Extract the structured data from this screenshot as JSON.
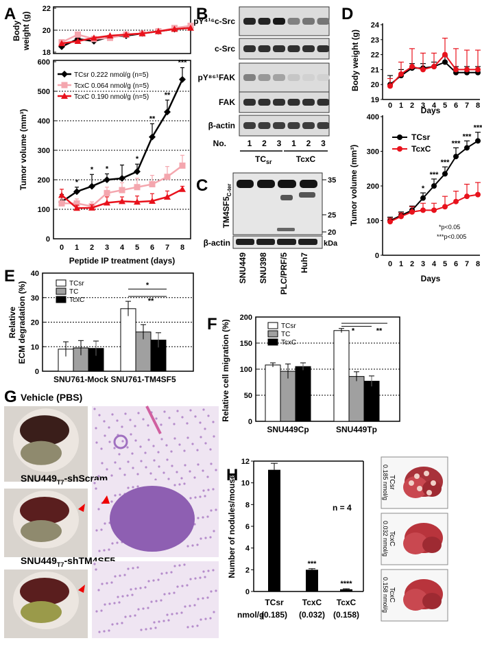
{
  "colors": {
    "black": "#000000",
    "pink": "#f4a6ae",
    "red": "#e8121c",
    "grey": "#a0a0a0",
    "white": "#ffffff"
  },
  "panels": {
    "A": {
      "letter": "A",
      "body_ylabel_1": "Body",
      "body_ylabel_2": "weight (g)",
      "body_chart": {
        "type": "line",
        "ylim": [
          18,
          22
        ],
        "yticks": [
          "18",
          "20",
          "22"
        ],
        "x": [
          0,
          1,
          2,
          3,
          4,
          5,
          6,
          7,
          8
        ],
        "series": [
          {
            "name": "TCsr",
            "values": [
              18.5,
              19.2,
              19.0,
              19.4,
              19.5,
              19.7,
              19.9,
              20.1,
              20.2
            ]
          },
          {
            "name": "TcxC 0.064",
            "values": [
              18.9,
              19.6,
              19.2,
              19.3,
              19.6,
              19.7,
              19.9,
              20.2,
              20.4
            ]
          },
          {
            "name": "TcxC 0.190",
            "values": [
              18.8,
              19.0,
              19.3,
              19.5,
              19.6,
              19.7,
              19.9,
              20.1,
              20.2
            ]
          }
        ]
      },
      "tumor_chart": {
        "type": "line",
        "ylim": [
          0,
          600
        ],
        "yticks": [
          "0",
          "100",
          "200",
          "300",
          "400",
          "500",
          "600"
        ],
        "xticks": [
          "0",
          "1",
          "2",
          "3",
          "4",
          "5",
          "6",
          "7",
          "8"
        ],
        "ylabel": "Tumor volume (mm³)",
        "xlabel": "Peptide IP treatment (days)",
        "series": [
          {
            "name": "TCsr 0.222 nmol/g (n=5)",
            "values": [
              125,
              160,
              178,
              200,
              205,
              228,
              345,
              430,
              540
            ],
            "err": [
              25,
              15,
              40,
              20,
              45,
              25,
              45,
              40,
              40
            ]
          },
          {
            "name": "TcxC 0.064 nmol/g (n=5)",
            "values": [
              120,
              120,
              110,
              155,
              165,
              175,
              185,
              210,
              248
            ],
            "err": [
              15,
              15,
              15,
              20,
              25,
              30,
              30,
              35,
              35
            ]
          },
          {
            "name": "TcxC 0.190 nmol/g (n=5)",
            "values": [
              148,
              104,
              105,
              122,
              127,
              125,
              128,
              142,
              168
            ],
            "err": [
              20,
              10,
              10,
              20,
              15,
              20,
              25,
              20,
              10
            ]
          }
        ],
        "annotations": [
          "*",
          "*",
          "*",
          "*",
          "**",
          "**",
          "***"
        ]
      }
    },
    "B": {
      "letter": "B",
      "blots": [
        "pY⁴¹⁶c-Src",
        "c-Src",
        "pY⁸⁶¹FAK",
        "FAK",
        "β-actin"
      ],
      "no_label": "No.",
      "lanes": [
        "1",
        "2",
        "3",
        "1",
        "2",
        "3"
      ],
      "groups": [
        "TCsr",
        "TcxC"
      ]
    },
    "C": {
      "letter": "C",
      "blot_label": "TM4SF5C-ter",
      "actin_label": "β-actin",
      "markers": [
        "35",
        "25",
        "20"
      ],
      "kda": "kDa",
      "cells": [
        "SNU449",
        "SNU398",
        "PLC/PRF/5",
        "Huh7"
      ]
    },
    "D": {
      "letter": "D",
      "body_chart": {
        "type": "line",
        "ylabel": "Body weight (g)",
        "xlabel": "Days",
        "ylim": [
          19,
          24
        ],
        "yticks": [
          "19",
          "20",
          "21",
          "22",
          "23",
          "24"
        ],
        "xticks": [
          "0",
          "1",
          "2",
          "3",
          "4",
          "5",
          "6",
          "7",
          "8"
        ],
        "series": [
          {
            "name": "TCsr",
            "values": [
              20.0,
              20.6,
              21.1,
              21.1,
              21.2,
              21.5,
              20.8,
              20.8,
              20.8
            ]
          },
          {
            "name": "TcxC",
            "values": [
              19.9,
              20.7,
              21.2,
              21.0,
              21.2,
              22.0,
              21.0,
              21.0,
              21.0
            ]
          }
        ]
      },
      "tumor_chart": {
        "type": "line",
        "ylabel": "Tumor volume (mm³)",
        "xlabel": "Days",
        "ylim": [
          0,
          400
        ],
        "yticks": [
          "0",
          "100",
          "200",
          "300",
          "400"
        ],
        "xticks": [
          "0",
          "1",
          "2",
          "3",
          "4",
          "5",
          "6",
          "7",
          "8"
        ],
        "series": [
          {
            "name": "TCsr",
            "values": [
              100,
              115,
              130,
              165,
              200,
              235,
              285,
              310,
              330
            ],
            "err": [
              10,
              10,
              12,
              15,
              20,
              20,
              25,
              20,
              25
            ]
          },
          {
            "name": "TcxC",
            "values": [
              97,
              112,
              125,
              130,
              130,
              140,
              155,
              170,
              175
            ],
            "err": [
              10,
              10,
              15,
              20,
              20,
              30,
              30,
              35,
              35
            ]
          }
        ],
        "annotations": [
          "*",
          "***",
          "***",
          "***",
          "***",
          "***"
        ],
        "sig_note_1": "*p<0.05",
        "sig_note_2": "***p<0.005"
      }
    },
    "E": {
      "letter": "E",
      "chart": {
        "type": "bar",
        "ylabel_1": "Relative",
        "ylabel_2": "ECM degradation (%)",
        "ylim": [
          0,
          40
        ],
        "yticks": [
          "0",
          "10",
          "20",
          "30",
          "40"
        ],
        "categories": [
          "SNU761-Mock",
          "SNU761-TM4SF5"
        ],
        "series": [
          {
            "name": "TCsr",
            "values": [
              9,
              25.5
            ],
            "err": [
              3,
              3
            ]
          },
          {
            "name": "TC",
            "values": [
              9.5,
              16
            ],
            "err": [
              3,
              3
            ]
          },
          {
            "name": "TcxC",
            "values": [
              9.3,
              12.7
            ],
            "err": [
              3,
              3
            ]
          }
        ],
        "annotations": [
          "*",
          "**"
        ]
      }
    },
    "F": {
      "letter": "F",
      "chart": {
        "type": "bar",
        "ylabel": "Relative cell migration (%)",
        "ylim": [
          0,
          200
        ],
        "yticks": [
          "0",
          "50",
          "100",
          "150",
          "200"
        ],
        "categories": [
          "SNU449Cp",
          "SNU449Tp"
        ],
        "series": [
          {
            "name": "TCsr",
            "values": [
              108,
              174
            ],
            "err": [
              4,
              4
            ]
          },
          {
            "name": "TC",
            "values": [
              96,
              86
            ],
            "err": [
              14,
              9
            ]
          },
          {
            "name": "TcxC",
            "values": [
              105,
              77
            ],
            "err": [
              7,
              10
            ]
          }
        ],
        "annotations": [
          "*",
          "**"
        ]
      }
    },
    "G": {
      "letter": "G",
      "rows": [
        "Vehicle (PBS)",
        "SNU449T7-shScram",
        "SNU449T7-shTM4SF5"
      ]
    },
    "H": {
      "letter": "H",
      "chart": {
        "type": "bar",
        "ylabel": "Number of nodules/mouse",
        "ylim": [
          0,
          12
        ],
        "yticks": [
          "0",
          "2",
          "4",
          "6",
          "8",
          "10",
          "12"
        ],
        "categories": [
          "TCsr (0.185)",
          "TcxC (0.032)",
          "TcxC (0.158)"
        ],
        "values": [
          11.2,
          2.0,
          0.2
        ],
        "err": [
          0.6,
          0.1,
          0.05
        ],
        "annotations": [
          "",
          "***",
          "****"
        ],
        "n_label": "n = 4",
        "unit_label": "nmol/g"
      },
      "cat_top": [
        "TCsr",
        "TcxC",
        "TcxC"
      ],
      "cat_bottom": [
        "(0.185)",
        "(0.032)",
        "(0.158)"
      ],
      "liver_labels": [
        [
          "TCsr",
          "0.185 nmol/g"
        ],
        [
          "TcxC",
          "0.032 nmol/g"
        ],
        [
          "TcxC",
          "0.158 nmol/g"
        ]
      ]
    }
  }
}
